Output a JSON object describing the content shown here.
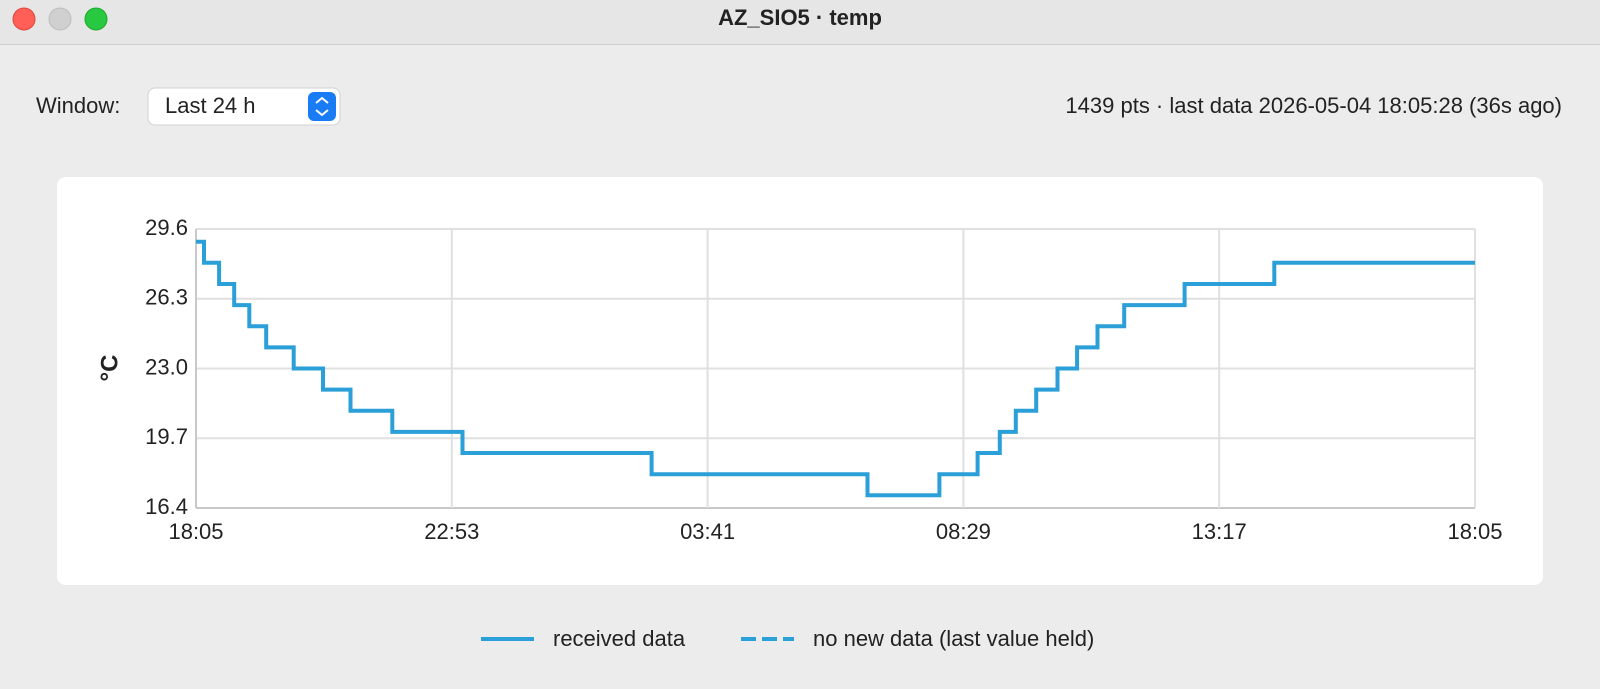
{
  "window_title": "AZ_SIO5 · temp",
  "controls": {
    "window_label": "Window:",
    "window_select": "Last 24 h",
    "status": "1439 pts · last data 2026-05-04 18:05:28 (36s ago)"
  },
  "chart_data": {
    "type": "line",
    "y_label": "°C",
    "x": [
      0,
      9,
      9,
      26,
      26,
      43,
      43,
      60,
      60,
      79,
      79,
      110,
      110,
      143,
      143,
      174,
      174,
      221,
      221,
      300,
      300,
      513,
      513,
      756,
      756,
      837,
      837,
      880,
      880,
      905,
      905,
      923,
      923,
      946,
      946,
      970,
      970,
      992,
      992,
      1015,
      1015,
      1045,
      1045,
      1113,
      1113,
      1214,
      1214,
      1440
    ],
    "series": [
      {
        "name": "received data",
        "color": "#2a9fd8",
        "dash": false,
        "values": [
          29,
          29,
          28,
          28,
          27,
          27,
          26,
          26,
          25,
          25,
          24,
          24,
          23,
          23,
          22,
          22,
          21,
          21,
          20,
          20,
          19,
          19,
          18,
          18,
          17,
          17,
          18,
          18,
          19,
          19,
          20,
          20,
          21,
          21,
          22,
          22,
          23,
          23,
          24,
          24,
          25,
          25,
          26,
          26,
          27,
          27,
          28,
          28
        ]
      },
      {
        "name": "no new data (last value held)",
        "color": "#2a9fd8",
        "dash": true,
        "values": [
          null,
          null,
          null,
          null,
          null,
          null,
          null,
          null,
          null,
          null,
          null,
          null,
          null,
          null,
          null,
          null,
          null,
          null,
          null,
          null,
          null,
          null,
          null,
          null,
          null,
          null,
          null,
          null,
          null,
          null,
          null,
          null,
          null,
          null,
          null,
          null,
          null,
          null,
          null,
          null,
          null,
          null,
          null,
          null,
          null,
          null,
          null,
          null
        ]
      }
    ],
    "xlim": [
      0,
      1440
    ],
    "xticks": [
      {
        "value": 0,
        "label": "18:05"
      },
      {
        "value": 288,
        "label": "22:53"
      },
      {
        "value": 576,
        "label": "03:41"
      },
      {
        "value": 864,
        "label": "08:29"
      },
      {
        "value": 1152,
        "label": "13:17"
      },
      {
        "value": 1440,
        "label": "18:05"
      }
    ],
    "ylim": [
      16.4,
      29.6
    ],
    "yticks": [
      16.4,
      19.7,
      {
        "value": 23,
        "label": "23.0"
      },
      26.3,
      29.6
    ],
    "grid": true
  }
}
